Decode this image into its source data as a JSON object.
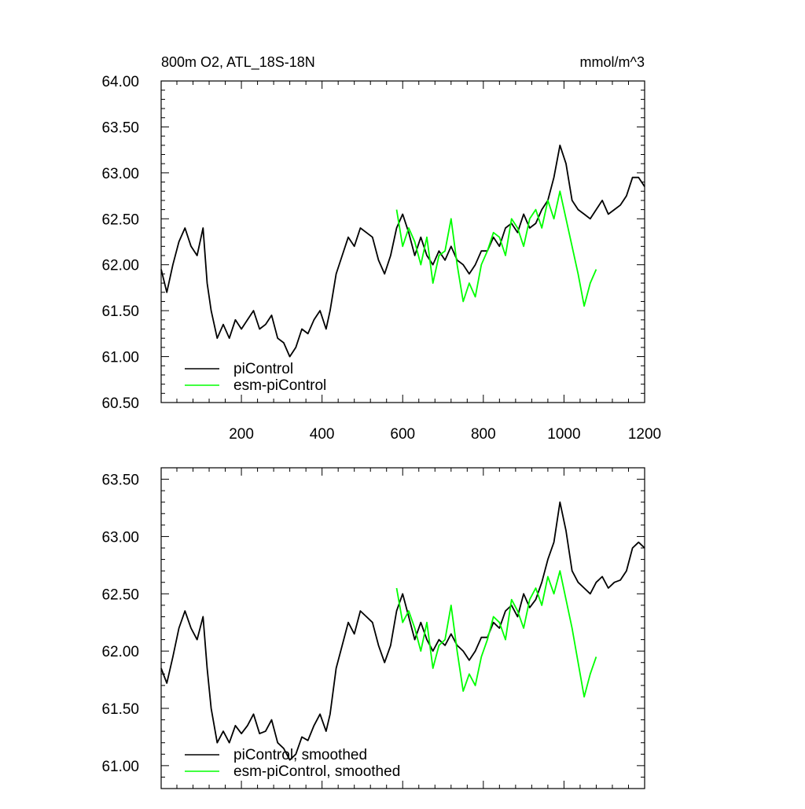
{
  "chart_data": [
    {
      "type": "line",
      "title": "800m O2, ATL_18S-18N",
      "units": "mmol/m^3",
      "xlim": [
        1,
        1200
      ],
      "ylim": [
        60.5,
        64.0
      ],
      "y_ticks": [
        "60.50",
        "61.00",
        "61.50",
        "62.00",
        "62.50",
        "63.00",
        "63.50",
        "64.00"
      ],
      "x_ticks": [
        "200",
        "400",
        "600",
        "800",
        "1000",
        "1200"
      ],
      "legend_position": "bottom-left",
      "grid": false,
      "series": [
        {
          "name": "piControl",
          "color": "#000000",
          "x": [
            1,
            15,
            30,
            45,
            60,
            75,
            90,
            105,
            115,
            125,
            140,
            155,
            170,
            185,
            200,
            215,
            230,
            245,
            260,
            275,
            290,
            305,
            320,
            335,
            350,
            365,
            380,
            395,
            410,
            420,
            435,
            450,
            465,
            480,
            495,
            510,
            525,
            540,
            555,
            570,
            585,
            600,
            615,
            630,
            645,
            660,
            675,
            690,
            705,
            720,
            735,
            750,
            765,
            780,
            795,
            810,
            825,
            840,
            855,
            870,
            885,
            900,
            915,
            930,
            945,
            960,
            975,
            990,
            1005,
            1020,
            1035,
            1050,
            1065,
            1080,
            1095,
            1110,
            1125,
            1140,
            1155,
            1170,
            1185,
            1200
          ],
          "values": [
            61.95,
            61.7,
            62.0,
            62.25,
            62.4,
            62.2,
            62.1,
            62.4,
            61.8,
            61.5,
            61.2,
            61.35,
            61.2,
            61.4,
            61.3,
            61.4,
            61.5,
            61.3,
            61.35,
            61.45,
            61.2,
            61.15,
            61.0,
            61.1,
            61.3,
            61.25,
            61.4,
            61.5,
            61.3,
            61.5,
            61.9,
            62.1,
            62.3,
            62.2,
            62.4,
            62.35,
            62.3,
            62.05,
            61.9,
            62.1,
            62.4,
            62.55,
            62.35,
            62.1,
            62.3,
            62.1,
            62.0,
            62.15,
            62.05,
            62.2,
            62.05,
            62.0,
            61.9,
            62.0,
            62.15,
            62.15,
            62.3,
            62.2,
            62.4,
            62.45,
            62.35,
            62.55,
            62.4,
            62.45,
            62.6,
            62.7,
            62.95,
            63.3,
            63.1,
            62.7,
            62.6,
            62.55,
            62.5,
            62.6,
            62.7,
            62.55,
            62.6,
            62.65,
            62.75,
            62.95,
            62.95,
            62.85
          ]
        },
        {
          "name": "esm-piControl",
          "color": "#00ff00",
          "x": [
            585,
            600,
            615,
            630,
            645,
            660,
            675,
            690,
            705,
            720,
            735,
            750,
            765,
            780,
            795,
            810,
            825,
            840,
            855,
            870,
            885,
            900,
            915,
            930,
            945,
            960,
            975,
            990,
            1005,
            1020,
            1035,
            1050,
            1065,
            1080
          ],
          "values": [
            62.6,
            62.2,
            62.4,
            62.25,
            62.0,
            62.3,
            61.8,
            62.1,
            62.15,
            62.5,
            62.0,
            61.6,
            61.8,
            61.65,
            62.0,
            62.15,
            62.35,
            62.3,
            62.1,
            62.5,
            62.4,
            62.2,
            62.5,
            62.6,
            62.4,
            62.7,
            62.5,
            62.8,
            62.5,
            62.2,
            61.9,
            61.55,
            61.8,
            61.95
          ]
        }
      ]
    },
    {
      "type": "line",
      "xlim": [
        1,
        1200
      ],
      "ylim": [
        60.8,
        63.6
      ],
      "y_ticks": [
        "61.00",
        "61.50",
        "62.00",
        "62.50",
        "63.00",
        "63.50"
      ],
      "legend_position": "bottom-left",
      "grid": false,
      "series": [
        {
          "name": "piControl, smoothed",
          "color": "#000000",
          "x": [
            1,
            15,
            30,
            45,
            60,
            75,
            90,
            105,
            115,
            125,
            140,
            155,
            170,
            185,
            200,
            215,
            230,
            245,
            260,
            275,
            290,
            305,
            320,
            335,
            350,
            365,
            380,
            395,
            410,
            420,
            435,
            450,
            465,
            480,
            495,
            510,
            525,
            540,
            555,
            570,
            585,
            600,
            615,
            630,
            645,
            660,
            675,
            690,
            705,
            720,
            735,
            750,
            765,
            780,
            795,
            810,
            825,
            840,
            855,
            870,
            885,
            900,
            915,
            930,
            945,
            960,
            975,
            990,
            1005,
            1020,
            1035,
            1050,
            1065,
            1080,
            1095,
            1110,
            1125,
            1140,
            1155,
            1170,
            1185,
            1200
          ],
          "values": [
            61.85,
            61.72,
            61.95,
            62.2,
            62.35,
            62.2,
            62.1,
            62.3,
            61.85,
            61.5,
            61.2,
            61.3,
            61.2,
            61.35,
            61.28,
            61.35,
            61.45,
            61.28,
            61.3,
            61.4,
            61.2,
            61.15,
            61.05,
            61.1,
            61.25,
            61.22,
            61.35,
            61.45,
            61.3,
            61.45,
            61.85,
            62.05,
            62.25,
            62.15,
            62.35,
            62.3,
            62.25,
            62.05,
            61.9,
            62.05,
            62.35,
            62.5,
            62.3,
            62.1,
            62.25,
            62.1,
            62.0,
            62.1,
            62.05,
            62.15,
            62.05,
            62.0,
            61.92,
            62.0,
            62.12,
            62.12,
            62.25,
            62.2,
            62.35,
            62.4,
            62.3,
            62.5,
            62.38,
            62.45,
            62.6,
            62.8,
            62.95,
            63.3,
            63.05,
            62.7,
            62.6,
            62.55,
            62.5,
            62.6,
            62.65,
            62.55,
            62.6,
            62.62,
            62.7,
            62.9,
            62.95,
            62.9
          ]
        },
        {
          "name": "esm-piControl, smoothed",
          "color": "#00ff00",
          "x": [
            585,
            600,
            615,
            630,
            645,
            660,
            675,
            690,
            705,
            720,
            735,
            750,
            765,
            780,
            795,
            810,
            825,
            840,
            855,
            870,
            885,
            900,
            915,
            930,
            945,
            960,
            975,
            990,
            1005,
            1020,
            1035,
            1050,
            1065,
            1080
          ],
          "values": [
            62.55,
            62.25,
            62.35,
            62.2,
            62.0,
            62.25,
            61.85,
            62.05,
            62.1,
            62.4,
            62.0,
            61.65,
            61.8,
            61.7,
            61.95,
            62.1,
            62.3,
            62.25,
            62.1,
            62.45,
            62.35,
            62.2,
            62.45,
            62.55,
            62.4,
            62.65,
            62.5,
            62.7,
            62.45,
            62.2,
            61.9,
            61.6,
            61.8,
            61.95
          ]
        }
      ]
    }
  ]
}
